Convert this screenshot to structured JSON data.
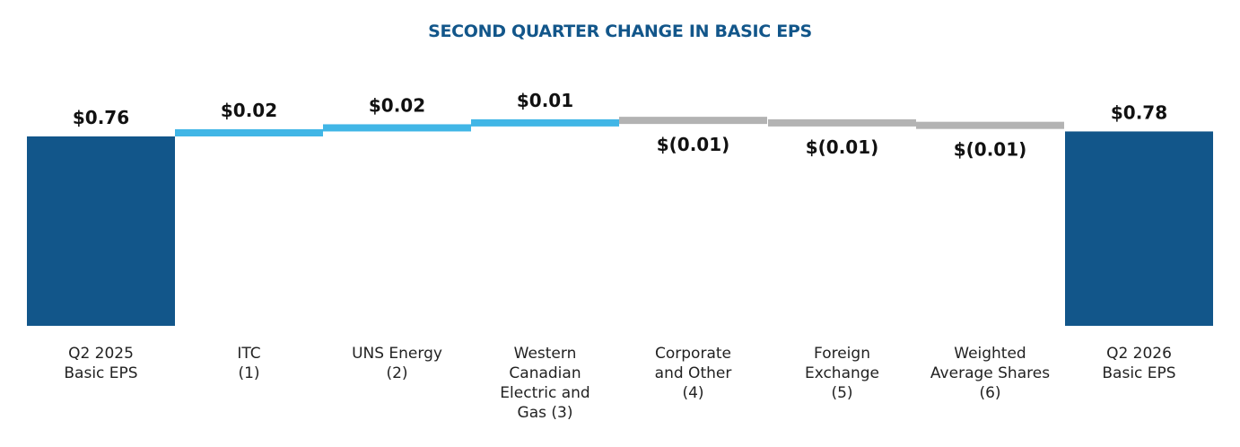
{
  "chart_data": {
    "type": "bar",
    "title": "SECOND QUARTER CHANGE IN BASIC EPS",
    "categories": [
      [
        "Q2 2025",
        "Basic EPS"
      ],
      [
        "ITC",
        "(1)"
      ],
      [
        "UNS Energy",
        "(2)"
      ],
      [
        "Western",
        "Canadian",
        "Electric and",
        "Gas (3)"
      ],
      [
        "Corporate",
        "and Other",
        "(4)"
      ],
      [
        "Foreign",
        "Exchange",
        "(5)"
      ],
      [
        "Weighted",
        "Average Shares",
        "(6)"
      ],
      [
        "Q2 2026",
        "Basic EPS"
      ]
    ],
    "values": [
      0.76,
      0.02,
      0.02,
      0.01,
      -0.01,
      -0.01,
      -0.01,
      0.78
    ],
    "value_labels": [
      "$0.76",
      "$0.02",
      "$0.02",
      "$0.01",
      "$(0.01)",
      "$(0.01)",
      "$(0.01)",
      "$0.78"
    ],
    "bar_kinds": [
      "total",
      "increase",
      "increase",
      "increase",
      "decrease",
      "decrease",
      "decrease",
      "total"
    ],
    "colors": {
      "total": "#12568a",
      "increase": "#41b6e6",
      "decrease": "#b3b3b3"
    },
    "xlabel": "",
    "ylabel": ""
  }
}
